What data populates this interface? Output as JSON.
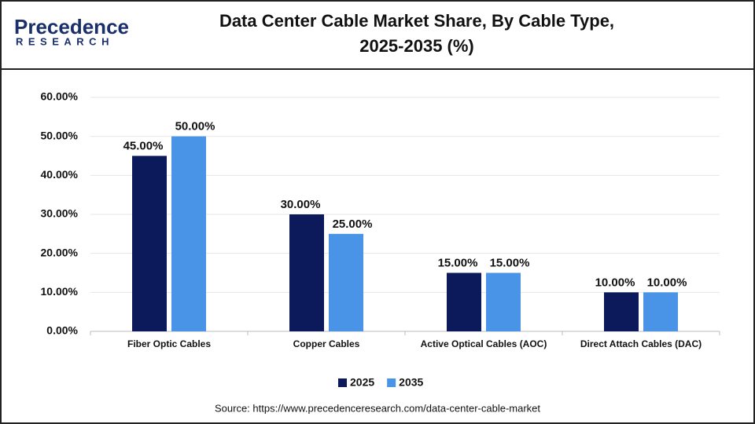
{
  "logo": {
    "name": "Precedence",
    "tagline": "RESEARCH"
  },
  "chart_data": {
    "type": "bar",
    "title": [
      "Data Center Cable Market Share, By Cable Type,",
      "2025-2035 (%)"
    ],
    "categories": [
      "Fiber Optic Cables",
      "Copper Cables",
      "Active Optical Cables (AOC)",
      "Direct Attach Cables (DAC)"
    ],
    "series": [
      {
        "name": "2025",
        "color": "#0c1a5c",
        "values": [
          45,
          30,
          15,
          10
        ],
        "value_labels": [
          "45.00%",
          "30.00%",
          "15.00%",
          "10.00%"
        ]
      },
      {
        "name": "2035",
        "color": "#4a94e8",
        "values": [
          50,
          25,
          15,
          10
        ],
        "value_labels": [
          "50.00%",
          "25.00%",
          "15.00%",
          "10.00%"
        ]
      }
    ],
    "ylim": [
      0,
      60
    ],
    "yticks": [
      {
        "value": 0,
        "label": "0.00%"
      },
      {
        "value": 10,
        "label": "10.00%"
      },
      {
        "value": 20,
        "label": "20.00%"
      },
      {
        "value": 30,
        "label": "30.00%"
      },
      {
        "value": 40,
        "label": "40.00%"
      },
      {
        "value": 50,
        "label": "50.00%"
      },
      {
        "value": 60,
        "label": "60.00%"
      }
    ],
    "grid": true,
    "legend": "bottom",
    "source": "Source: https://www.precedenceresearch.com/data-center-cable-market"
  }
}
